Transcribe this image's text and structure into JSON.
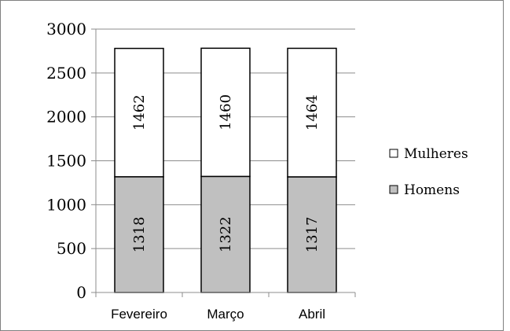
{
  "chart_data": {
    "type": "bar",
    "stacked": true,
    "categories": [
      "Fevereiro",
      "Março",
      "Abril"
    ],
    "series": [
      {
        "name": "Homens",
        "values": [
          1318,
          1322,
          1317
        ],
        "color": "#c0c0c0"
      },
      {
        "name": "Mulheres",
        "values": [
          1462,
          1460,
          1464
        ],
        "color": "#ffffff"
      }
    ],
    "ylim": [
      0,
      3000
    ],
    "yticks": [
      0,
      500,
      1000,
      1500,
      2000,
      2500,
      3000
    ],
    "grid": true,
    "legend_position": "right",
    "title": "",
    "xlabel": "",
    "ylabel": ""
  },
  "legend": {
    "items": [
      {
        "label": "Mulheres",
        "color": "#ffffff"
      },
      {
        "label": "Homens",
        "color": "#c0c0c0"
      }
    ]
  },
  "colors": {
    "grid": "#8c8c8c",
    "axis": "#8c8c8c",
    "bar_border": "#000000",
    "frame": "#808080"
  }
}
